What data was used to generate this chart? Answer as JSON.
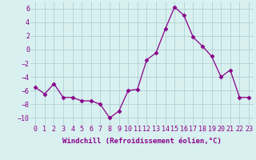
{
  "hours": [
    0,
    1,
    2,
    3,
    4,
    5,
    6,
    7,
    8,
    9,
    10,
    11,
    12,
    13,
    14,
    15,
    16,
    17,
    18,
    19,
    20,
    21,
    22,
    23
  ],
  "values": [
    -5.5,
    -6.5,
    -5.0,
    -7.0,
    -7.0,
    -7.5,
    -7.5,
    -8.0,
    -10.0,
    -9.0,
    -6.0,
    -5.8,
    -1.5,
    -0.5,
    3.0,
    6.2,
    5.0,
    1.8,
    0.5,
    -1.0,
    -4.0,
    -3.0,
    -7.0,
    -7.0
  ],
  "line_color": "#880088",
  "marker": "D",
  "marker_size": 2.5,
  "background_color": "#d8f0f0",
  "grid_color": "#aacccc",
  "xlabel": "Windchill (Refroidissement éolien,°C)",
  "ylim": [
    -11,
    7
  ],
  "yticks": [
    -10,
    -8,
    -6,
    -4,
    -2,
    0,
    2,
    4,
    6
  ],
  "xlim": [
    -0.5,
    23.5
  ],
  "xtick_labels": [
    "0",
    "1",
    "2",
    "3",
    "4",
    "5",
    "6",
    "7",
    "8",
    "9",
    "10",
    "11",
    "12",
    "13",
    "14",
    "15",
    "16",
    "17",
    "18",
    "19",
    "20",
    "21",
    "22",
    "23"
  ],
  "xlabel_fontsize": 6.5,
  "tick_fontsize": 6.0,
  "linewidth": 0.9
}
